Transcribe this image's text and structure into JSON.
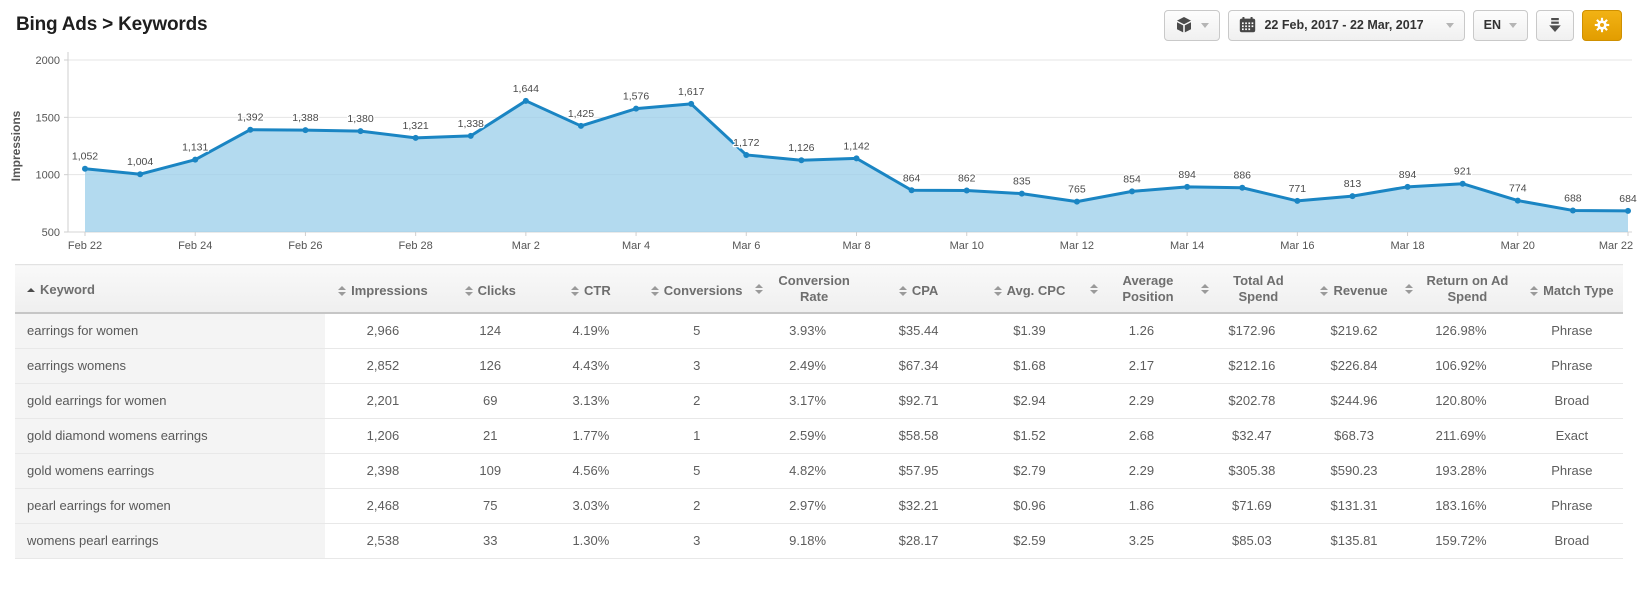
{
  "header": {
    "title": "Bing Ads > Keywords",
    "toolbar": {
      "product_button": {
        "icon": "cube-icon"
      },
      "date_range": "22 Feb, 2017 - 22 Mar, 2017",
      "language": "EN",
      "download_button": {
        "icon": "download-icon"
      },
      "settings_button": {
        "icon": "gear-icon",
        "accent_color": "#eba412"
      }
    }
  },
  "chart_data": {
    "type": "area",
    "title": "",
    "xlabel": "",
    "ylabel": "Impressions",
    "ylim": [
      500,
      2000
    ],
    "yticks": [
      500,
      1000,
      1500,
      2000
    ],
    "grid": true,
    "legend": "none",
    "line_color": "#1a85c3",
    "fill_color": "rgba(154,206,233,0.75)",
    "x": [
      "Feb 22",
      "Feb 23",
      "Feb 24",
      "Feb 25",
      "Feb 26",
      "Feb 27",
      "Feb 28",
      "Mar 1",
      "Mar 2",
      "Mar 3",
      "Mar 4",
      "Mar 5",
      "Mar 6",
      "Mar 7",
      "Mar 8",
      "Mar 9",
      "Mar 10",
      "Mar 11",
      "Mar 12",
      "Mar 13",
      "Mar 14",
      "Mar 15",
      "Mar 16",
      "Mar 17",
      "Mar 18",
      "Mar 19",
      "Mar 20",
      "Mar 21",
      "Mar 22"
    ],
    "values": [
      1052,
      1004,
      1131,
      1392,
      1388,
      1380,
      1321,
      1338,
      1644,
      1425,
      1576,
      1617,
      1172,
      1126,
      1142,
      864,
      862,
      835,
      765,
      854,
      894,
      886,
      771,
      813,
      894,
      921,
      774,
      688,
      684
    ],
    "x_tick_every": 2,
    "point_labels": true
  },
  "table": {
    "columns": [
      {
        "label": "Keyword",
        "sort": "asc"
      },
      {
        "label": "Impressions",
        "sort": "none"
      },
      {
        "label": "Clicks",
        "sort": "none"
      },
      {
        "label": "CTR",
        "sort": "none"
      },
      {
        "label": "Conversions",
        "sort": "none"
      },
      {
        "label": "Conversion Rate",
        "sort": "none"
      },
      {
        "label": "CPA",
        "sort": "none"
      },
      {
        "label": "Avg. CPC",
        "sort": "none"
      },
      {
        "label": "Average Position",
        "sort": "none"
      },
      {
        "label": "Total Ad Spend",
        "sort": "none"
      },
      {
        "label": "Revenue",
        "sort": "none"
      },
      {
        "label": "Return on Ad Spend",
        "sort": "none"
      },
      {
        "label": "Match Type",
        "sort": "none"
      }
    ],
    "rows": [
      [
        "earrings for women",
        "2,966",
        "124",
        "4.19%",
        "5",
        "3.93%",
        "$35.44",
        "$1.39",
        "1.26",
        "$172.96",
        "$219.62",
        "126.98%",
        "Phrase"
      ],
      [
        "earrings womens",
        "2,852",
        "126",
        "4.43%",
        "3",
        "2.49%",
        "$67.34",
        "$1.68",
        "2.17",
        "$212.16",
        "$226.84",
        "106.92%",
        "Phrase"
      ],
      [
        "gold earrings for women",
        "2,201",
        "69",
        "3.13%",
        "2",
        "3.17%",
        "$92.71",
        "$2.94",
        "2.29",
        "$202.78",
        "$244.96",
        "120.80%",
        "Broad"
      ],
      [
        "gold diamond womens earrings",
        "1,206",
        "21",
        "1.77%",
        "1",
        "2.59%",
        "$58.58",
        "$1.52",
        "2.68",
        "$32.47",
        "$68.73",
        "211.69%",
        "Exact"
      ],
      [
        "gold womens earrings",
        "2,398",
        "109",
        "4.56%",
        "5",
        "4.82%",
        "$57.95",
        "$2.79",
        "2.29",
        "$305.38",
        "$590.23",
        "193.28%",
        "Phrase"
      ],
      [
        "pearl earrings for women",
        "2,468",
        "75",
        "3.03%",
        "2",
        "2.97%",
        "$32.21",
        "$0.96",
        "1.86",
        "$71.69",
        "$131.31",
        "183.16%",
        "Phrase"
      ],
      [
        "womens pearl earrings",
        "2,538",
        "33",
        "1.30%",
        "3",
        "9.18%",
        "$28.17",
        "$2.59",
        "3.25",
        "$85.03",
        "$135.81",
        "159.72%",
        "Broad"
      ]
    ]
  }
}
